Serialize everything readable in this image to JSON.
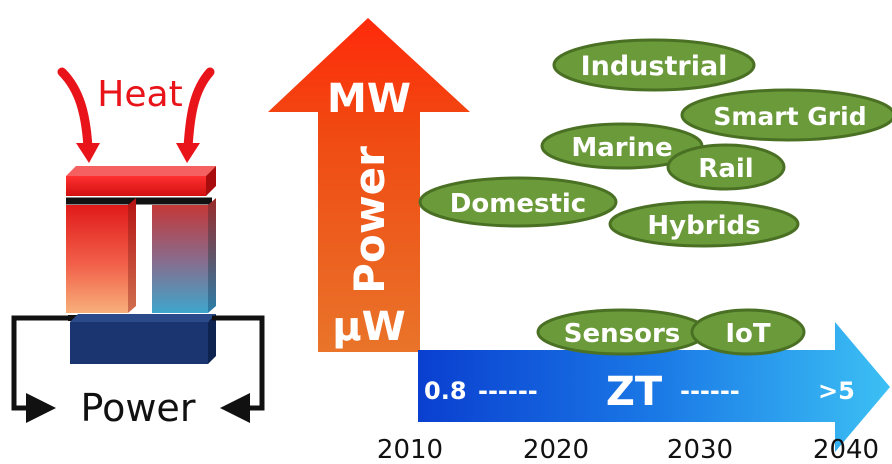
{
  "teg": {
    "heat_label": "Heat",
    "power_label": "Power"
  },
  "power_scale": {
    "top_label": "MW",
    "axis_label": "Power",
    "bottom_label": "µW"
  },
  "zt_arrow": {
    "start_label": "0.8",
    "dash_left": "------",
    "center_label": "ZT",
    "dash_right": "------",
    "end_label": ">5"
  },
  "years": [
    "2010",
    "2020",
    "2030",
    "2040"
  ],
  "applications": [
    "Industrial",
    "Smart Grid",
    "Marine",
    "Rail",
    "Domestic",
    "Hybrids",
    "Sensors",
    "IoT"
  ],
  "colors": {
    "heat_red": "#e8141a",
    "hot_leg_top": "#e8141a",
    "hot_leg_bottom": "#f5a070",
    "cold_leg_top": "#c73a3a",
    "cold_leg_bottom": "#3aa0c8",
    "base_navy": "#1a3570",
    "power_arrow_top": "#ff3a10",
    "power_arrow_bottom": "#e86a20",
    "zt_arrow_left": "#0a48d8",
    "zt_arrow_right": "#2ab4f0",
    "ellipse_fill": "#6b9a3a",
    "ellipse_stroke": "#4a7024",
    "text_dark": "#111111",
    "text_white": "#ffffff"
  }
}
